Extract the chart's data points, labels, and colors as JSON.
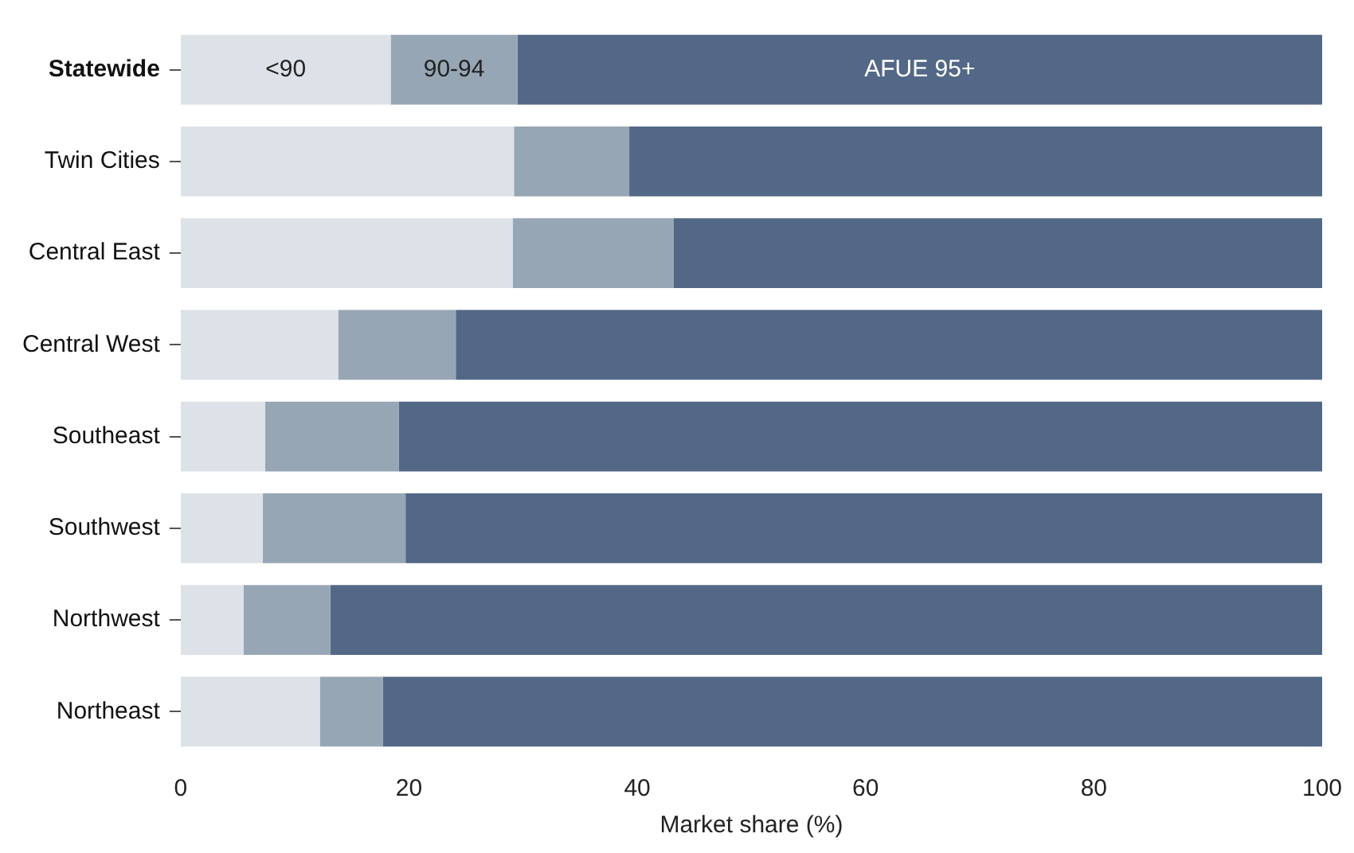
{
  "chart_data": {
    "type": "bar",
    "orientation": "horizontal",
    "stacked": true,
    "xlabel": "Market share (%)",
    "categories": [
      "Statewide",
      "Twin Cities",
      "Central East",
      "Central West",
      "Southeast",
      "Southwest",
      "Northwest",
      "Northeast"
    ],
    "series": [
      {
        "name": "<90",
        "color": "#dde1e8",
        "values": [
          18.4,
          29.2,
          29.1,
          13.8,
          7.4,
          7.2,
          5.5,
          12.2
        ]
      },
      {
        "name": "90-94",
        "color": "#97a6b5",
        "values": [
          11.1,
          10.1,
          14.1,
          10.3,
          11.7,
          12.5,
          7.6,
          5.5
        ]
      },
      {
        "name": "AFUE 95+",
        "color": "#536886",
        "values": [
          70.5,
          60.7,
          56.8,
          75.9,
          80.9,
          80.3,
          86.9,
          82.3
        ]
      }
    ],
    "xlim": [
      0,
      100
    ],
    "xticks": [
      0,
      20,
      40,
      60,
      80,
      100
    ],
    "grid": false,
    "legend": false
  }
}
